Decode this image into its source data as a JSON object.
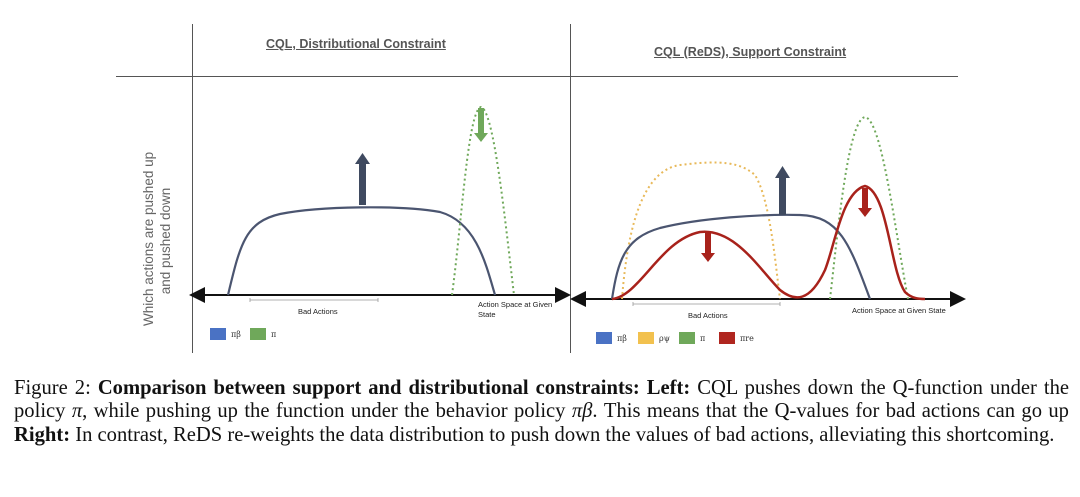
{
  "figure": {
    "left_title": "CQL, Distributional Constraint",
    "right_title": "CQL (ReDS), Support Constraint",
    "y_label_line1": "Which actions are pushed up",
    "y_label_line2": "and pushed down",
    "left_bad_actions": "Bad Actions",
    "left_action_space_line1": "Action Space at Given",
    "left_action_space_line2": "State",
    "right_bad_actions": "Bad Actions",
    "right_action_space": "Action Space at Given State",
    "left_legend": [
      {
        "label": "πβ",
        "color": "#4a72c4"
      },
      {
        "label": "π",
        "color": "#6fa85a"
      }
    ],
    "right_legend": [
      {
        "label": "πβ",
        "color": "#4a72c4"
      },
      {
        "label": "ρψ",
        "color": "#f2c14e"
      },
      {
        "label": "π",
        "color": "#6fa85a"
      },
      {
        "label": "πre",
        "color": "#b0261f"
      }
    ],
    "colors": {
      "behavior_curve": "#4b5570",
      "policy_dotted": "#6fa85a",
      "rho_dotted": "#e8b95a",
      "reweighted_curve": "#a8221b",
      "up_arrow": "#3f4a60",
      "down_arrow_red": "#a8221b",
      "down_arrow_green": "#6fa85a"
    }
  },
  "caption": {
    "figure_label": "Figure 2:",
    "bold_title": "Comparison between support and distributional constraints:",
    "left_label": "Left:",
    "left_text_1": "CQL pushes down the Q-function under the policy",
    "pi": "π",
    "left_text_2": ", while pushing up the function under the behavior policy",
    "pi_beta": "πβ",
    "left_text_3": ". This means that the Q-values for bad actions can go up",
    "right_label": "Right:",
    "right_text": "In contrast, ReDS re-weights the data distribution to push down the values of bad actions, alleviating this shortcoming."
  }
}
